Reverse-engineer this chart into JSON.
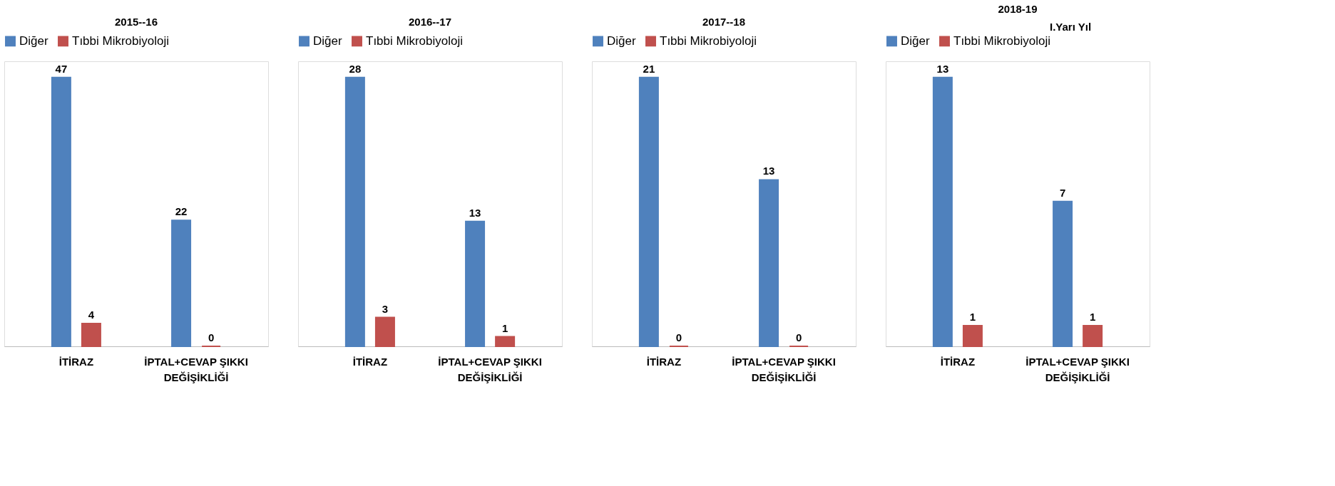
{
  "chart_data": [
    {
      "type": "bar",
      "title": "2015--16",
      "categories": [
        "İTİRAZ",
        "İPTAL+CEVAP ŞIKKI DEĞİŞİKLİĞİ"
      ],
      "legend": "top",
      "data_labels": true,
      "series": [
        {
          "name": "Diğer",
          "color": "#4f81bd",
          "values": [
            47,
            22
          ]
        },
        {
          "name": "Tıbbi Mikrobiyoloji",
          "color": "#c0504d",
          "values": [
            4,
            0
          ]
        }
      ]
    },
    {
      "type": "bar",
      "title": "2016--17",
      "categories": [
        "İTİRAZ",
        "İPTAL+CEVAP ŞIKKI DEĞİŞİKLİĞİ"
      ],
      "legend": "top",
      "data_labels": true,
      "series": [
        {
          "name": "Diğer",
          "color": "#4f81bd",
          "values": [
            28,
            13
          ]
        },
        {
          "name": "Tıbbi Mikrobiyoloji",
          "color": "#c0504d",
          "values": [
            3,
            1
          ]
        }
      ]
    },
    {
      "type": "bar",
      "title": "2017--18",
      "categories": [
        "İTİRAZ",
        "İPTAL+CEVAP ŞIKKI DEĞİŞİKLİĞİ"
      ],
      "legend": "top",
      "data_labels": true,
      "series": [
        {
          "name": "Diğer",
          "color": "#4f81bd",
          "values": [
            21,
            13
          ]
        },
        {
          "name": "Tıbbi Mikrobiyoloji",
          "color": "#c0504d",
          "values": [
            0,
            0
          ]
        }
      ]
    },
    {
      "type": "bar",
      "title": "2018-19",
      "annotations": [
        "I.Yarı Yıl"
      ],
      "categories": [
        "İTİRAZ",
        "İPTAL+CEVAP ŞIKKI DEĞİŞİKLİĞİ"
      ],
      "legend": "top",
      "data_labels": true,
      "series": [
        {
          "name": "Diğer",
          "color": "#4f81bd",
          "values": [
            13,
            7
          ]
        },
        {
          "name": "Tıbbi Mikrobiyoloji",
          "color": "#c0504d",
          "values": [
            1,
            1
          ]
        }
      ]
    }
  ]
}
